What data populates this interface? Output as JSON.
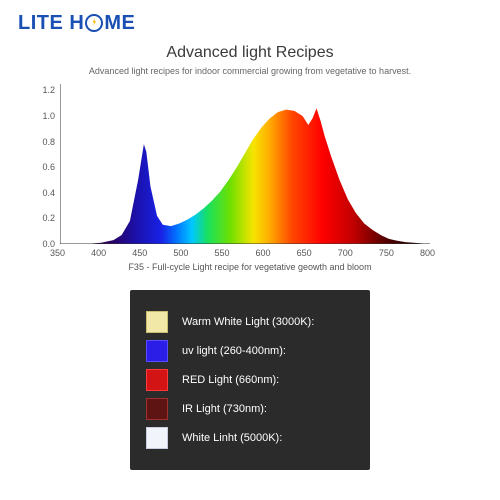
{
  "logo": {
    "text_left": "LITE H",
    "text_right": "ME",
    "brand_color": "#1a4fb3",
    "bolt_color": "#f7b500"
  },
  "title": "Advanced light Recipes",
  "subtitle": "Advanced light recipes for indoor commercial growing from vegetative to harvest.",
  "caption": "F35 - Full-cycle Light recipe for vegetative geowth and bloom",
  "chart": {
    "type": "area",
    "background_color": "#ffffff",
    "xlim": [
      350,
      800
    ],
    "ylim": [
      0,
      1.25
    ],
    "xtick_step": 50,
    "yticks": [
      0.0,
      0.2,
      0.4,
      0.6,
      0.8,
      1.0,
      1.2
    ],
    "xticks": [
      350,
      400,
      450,
      500,
      550,
      600,
      650,
      700,
      750,
      800
    ],
    "tick_fontsize": 9,
    "axis_color": "#333333",
    "spectrum_points": [
      [
        380,
        0.0
      ],
      [
        400,
        0.01
      ],
      [
        415,
        0.03
      ],
      [
        425,
        0.07
      ],
      [
        435,
        0.18
      ],
      [
        445,
        0.5
      ],
      [
        452,
        0.78
      ],
      [
        455,
        0.72
      ],
      [
        460,
        0.45
      ],
      [
        468,
        0.22
      ],
      [
        475,
        0.15
      ],
      [
        485,
        0.14
      ],
      [
        495,
        0.16
      ],
      [
        505,
        0.19
      ],
      [
        515,
        0.23
      ],
      [
        525,
        0.28
      ],
      [
        535,
        0.34
      ],
      [
        545,
        0.41
      ],
      [
        555,
        0.5
      ],
      [
        565,
        0.6
      ],
      [
        575,
        0.71
      ],
      [
        585,
        0.82
      ],
      [
        595,
        0.91
      ],
      [
        605,
        0.98
      ],
      [
        615,
        1.03
      ],
      [
        625,
        1.05
      ],
      [
        635,
        1.04
      ],
      [
        645,
        1.0
      ],
      [
        652,
        0.93
      ],
      [
        657,
        0.98
      ],
      [
        662,
        1.06
      ],
      [
        667,
        0.96
      ],
      [
        672,
        0.84
      ],
      [
        680,
        0.68
      ],
      [
        690,
        0.5
      ],
      [
        700,
        0.35
      ],
      [
        710,
        0.24
      ],
      [
        720,
        0.16
      ],
      [
        730,
        0.11
      ],
      [
        740,
        0.07
      ],
      [
        750,
        0.04
      ],
      [
        760,
        0.025
      ],
      [
        770,
        0.015
      ],
      [
        780,
        0.01
      ],
      [
        800,
        0.0
      ]
    ],
    "gradient_stops": [
      {
        "nm": 380,
        "color": "#2b0057"
      },
      {
        "nm": 420,
        "color": "#1b12b0"
      },
      {
        "nm": 450,
        "color": "#1822e6"
      },
      {
        "nm": 470,
        "color": "#0074ff"
      },
      {
        "nm": 490,
        "color": "#00c8ff"
      },
      {
        "nm": 510,
        "color": "#18e060"
      },
      {
        "nm": 540,
        "color": "#6fe000"
      },
      {
        "nm": 570,
        "color": "#f7e400"
      },
      {
        "nm": 590,
        "color": "#ffae00"
      },
      {
        "nm": 620,
        "color": "#ff4800"
      },
      {
        "nm": 660,
        "color": "#ff0000"
      },
      {
        "nm": 700,
        "color": "#c10000"
      },
      {
        "nm": 740,
        "color": "#5a0000"
      },
      {
        "nm": 780,
        "color": "#1a0000"
      }
    ]
  },
  "legend": {
    "bg": "#2b2b2b",
    "label_color": "#ffffff",
    "label_fontsize": 11,
    "items": [
      {
        "label": "Warm White Light (3000K):",
        "color": "#f1e7a6",
        "border": "#c9bd70"
      },
      {
        "label": "uv light (260-400nm):",
        "color": "#2b1ee6",
        "border": "#5a4dff"
      },
      {
        "label": "RED Light (660nm):",
        "color": "#d31414",
        "border": "#ff3a3a"
      },
      {
        "label": "IR Light (730nm):",
        "color": "#5f1414",
        "border": "#a03030"
      },
      {
        "label": "White Linht (5000K):",
        "color": "#f2f4fb",
        "border": "#c9cde0"
      }
    ]
  }
}
